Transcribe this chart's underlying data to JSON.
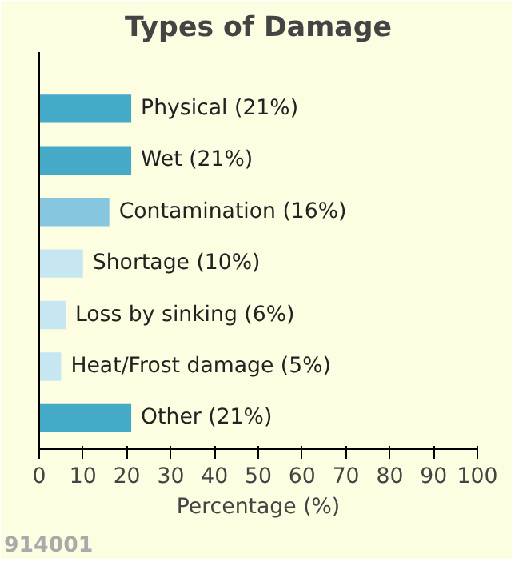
{
  "chart_data": {
    "type": "bar",
    "orientation": "horizontal",
    "title": "Types of Damage",
    "xlabel": "Percentage (%)",
    "categories": [
      null,
      null,
      null,
      null,
      null,
      null,
      null
    ],
    "values": [
      21,
      21,
      16,
      10,
      6,
      5,
      21
    ],
    "colors": [
      "#45a9c8",
      "#45a9c8",
      "#86c7df",
      "#c6e6f1",
      "#c6e6f1",
      "#c6e6f1",
      "#45a9c8"
    ],
    "value_labels": [
      "Physical (21%)",
      "Wet (21%)",
      "Contamination (16%)",
      "Shortage (10%)",
      "Loss by sinking (6%)",
      "Heat/Frost damage (5%)",
      "Other (21%)"
    ],
    "xlim": [
      0,
      100
    ],
    "xticks": [
      0,
      10,
      20,
      30,
      40,
      50,
      60,
      70,
      80,
      90,
      100
    ],
    "grid": false,
    "annotations": [
      "914001"
    ]
  }
}
